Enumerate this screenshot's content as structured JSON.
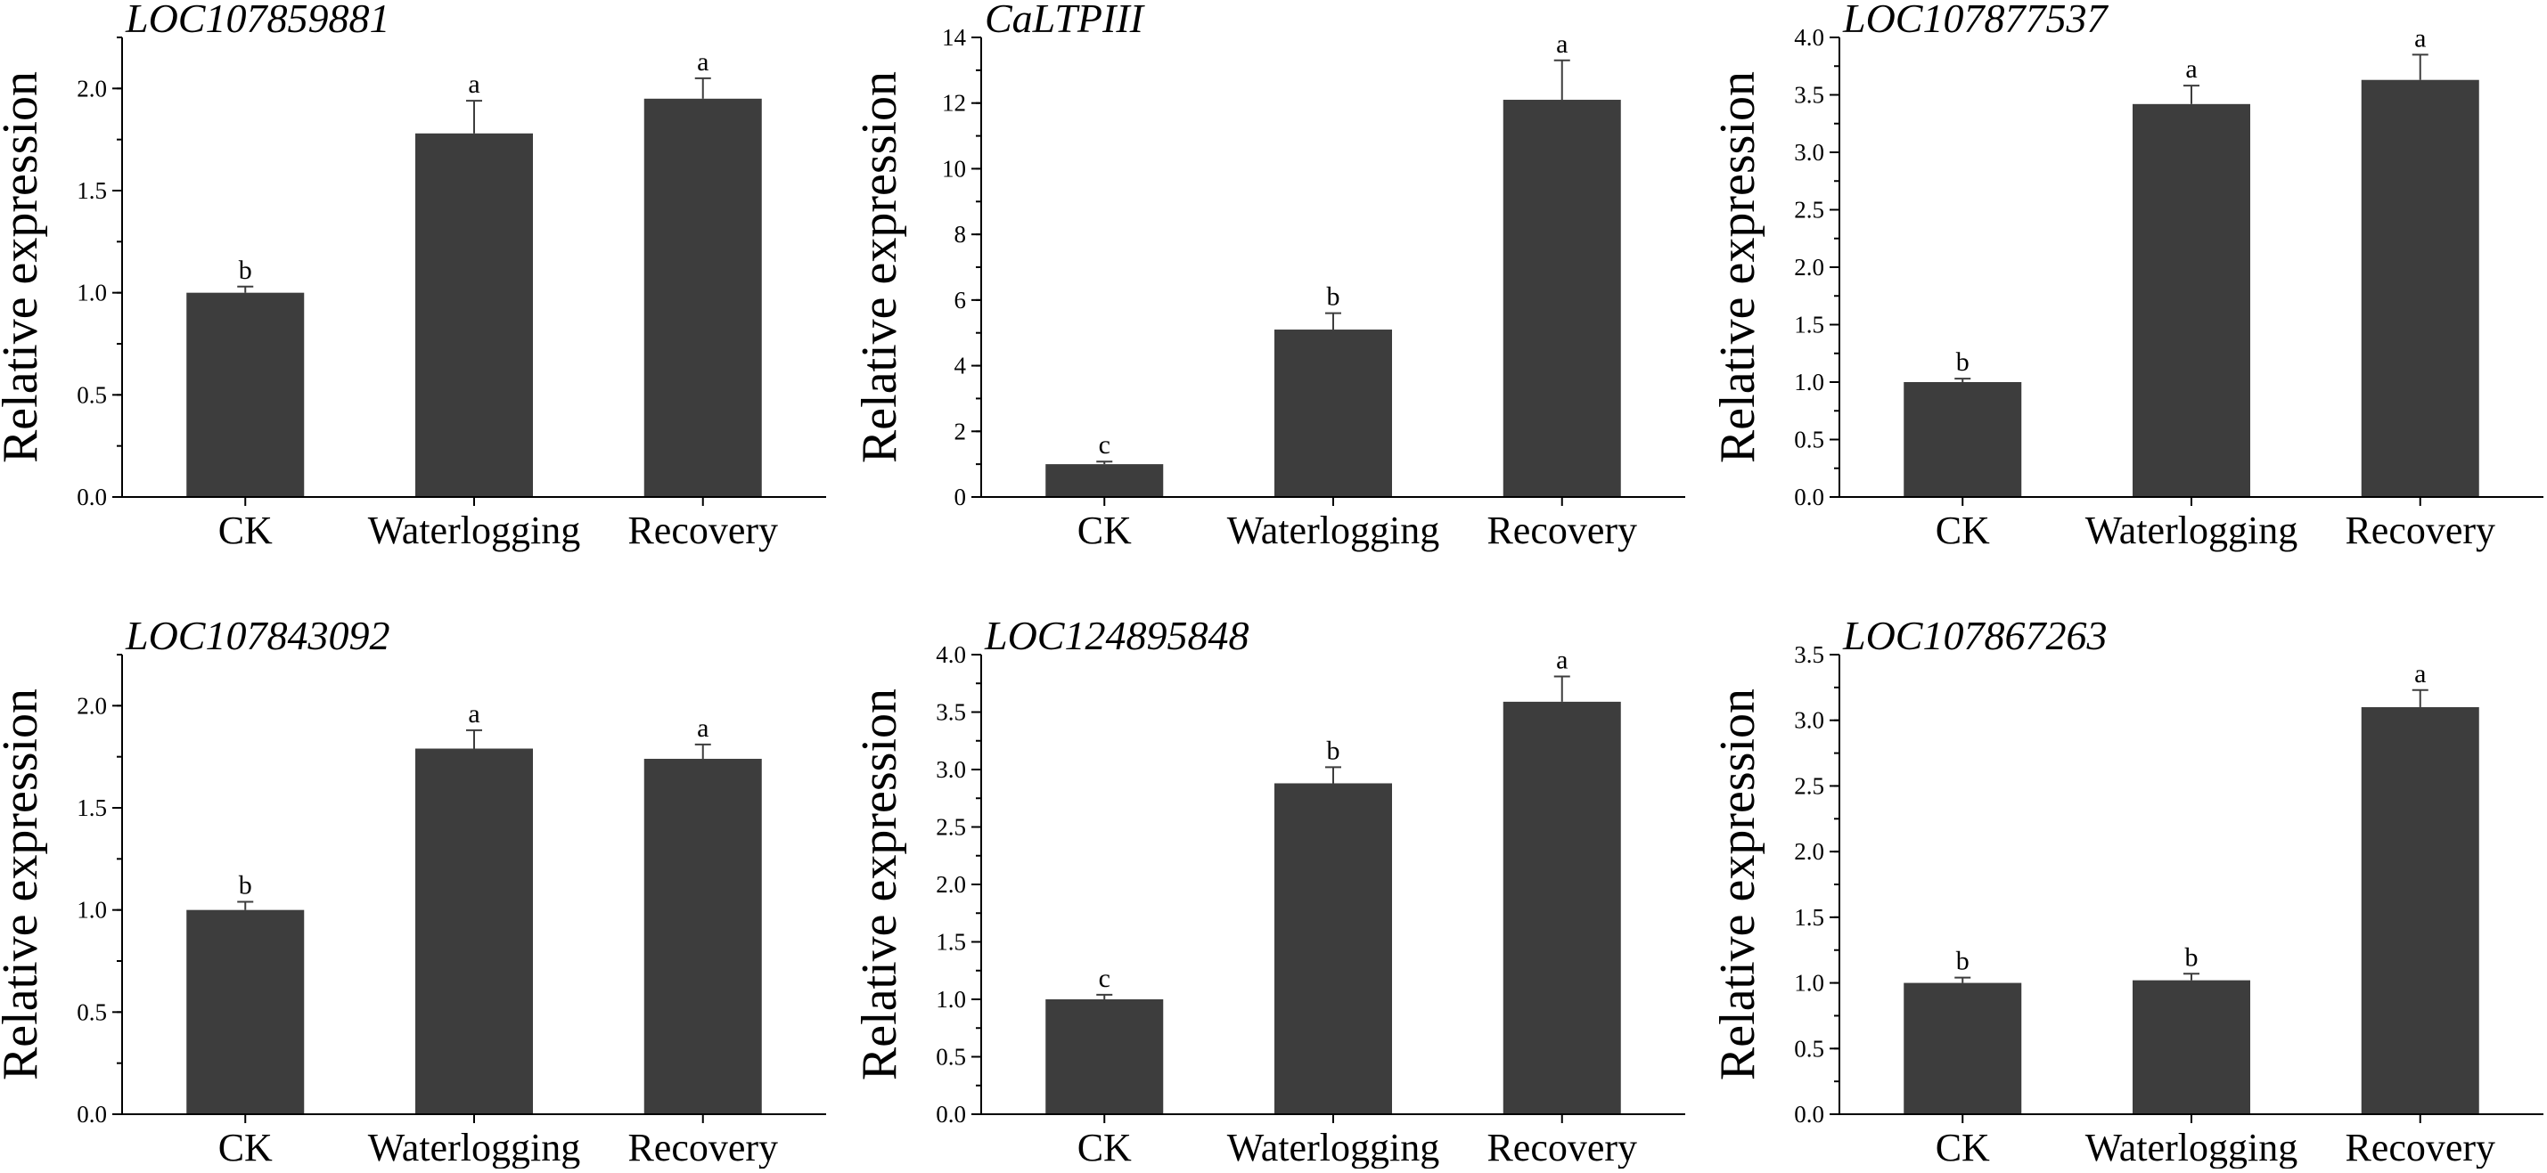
{
  "figure": {
    "background": "#ffffff",
    "bar_color": "#3d3d3d",
    "axis_color": "#000000"
  },
  "chart_data": [
    {
      "type": "bar",
      "title": "LOC107859881",
      "xlabel": "",
      "ylabel": "Relative expression",
      "categories": [
        "CK",
        "Waterlogging",
        "Recovery"
      ],
      "values": [
        1.0,
        1.78,
        1.95
      ],
      "errors": [
        0.03,
        0.16,
        0.1
      ],
      "significance": [
        "b",
        "a",
        "a"
      ],
      "ylim": [
        0,
        2.25
      ],
      "yticks": [
        0.0,
        0.5,
        1.0,
        1.5,
        2.0
      ],
      "ytick_labels": [
        "0.0",
        "0.5",
        "1.0",
        "1.5",
        "2.0"
      ],
      "minor_step": 0.25
    },
    {
      "type": "bar",
      "title": "CaLTPIII",
      "xlabel": "",
      "ylabel": "Relative expression",
      "categories": [
        "CK",
        "Waterlogging",
        "Recovery"
      ],
      "values": [
        1.0,
        5.1,
        12.1
      ],
      "errors": [
        0.08,
        0.5,
        1.2
      ],
      "significance": [
        "c",
        "b",
        "a"
      ],
      "ylim": [
        0,
        14
      ],
      "yticks": [
        0,
        2,
        4,
        6,
        8,
        10,
        12,
        14
      ],
      "ytick_labels": [
        "0",
        "2",
        "4",
        "6",
        "8",
        "10",
        "12",
        "14"
      ],
      "minor_step": 1
    },
    {
      "type": "bar",
      "title": "LOC107877537",
      "xlabel": "",
      "ylabel": "Relative expression",
      "categories": [
        "CK",
        "Waterlogging",
        "Recovery"
      ],
      "values": [
        1.0,
        3.42,
        3.63
      ],
      "errors": [
        0.03,
        0.16,
        0.22
      ],
      "significance": [
        "b",
        "a",
        "a"
      ],
      "ylim": [
        0,
        4.0
      ],
      "yticks": [
        0.0,
        0.5,
        1.0,
        1.5,
        2.0,
        2.5,
        3.0,
        3.5,
        4.0
      ],
      "ytick_labels": [
        "0.0",
        "0.5",
        "1.0",
        "1.5",
        "2.0",
        "2.5",
        "3.0",
        "3.5",
        "4.0"
      ],
      "minor_step": 0.25
    },
    {
      "type": "bar",
      "title": "LOC107843092",
      "xlabel": "",
      "ylabel": "Relative expression",
      "categories": [
        "CK",
        "Waterlogging",
        "Recovery"
      ],
      "values": [
        1.0,
        1.79,
        1.74
      ],
      "errors": [
        0.04,
        0.09,
        0.07
      ],
      "significance": [
        "b",
        "a",
        "a"
      ],
      "ylim": [
        0,
        2.25
      ],
      "yticks": [
        0.0,
        0.5,
        1.0,
        1.5,
        2.0
      ],
      "ytick_labels": [
        "0.0",
        "0.5",
        "1.0",
        "1.5",
        "2.0"
      ],
      "minor_step": 0.25
    },
    {
      "type": "bar",
      "title": "LOC124895848",
      "xlabel": "",
      "ylabel": "Relative expression",
      "categories": [
        "CK",
        "Waterlogging",
        "Recovery"
      ],
      "values": [
        1.0,
        2.88,
        3.59
      ],
      "errors": [
        0.04,
        0.14,
        0.22
      ],
      "significance": [
        "c",
        "b",
        "a"
      ],
      "ylim": [
        0,
        4.0
      ],
      "yticks": [
        0.0,
        0.5,
        1.0,
        1.5,
        2.0,
        2.5,
        3.0,
        3.5,
        4.0
      ],
      "ytick_labels": [
        "0.0",
        "0.5",
        "1.0",
        "1.5",
        "2.0",
        "2.5",
        "3.0",
        "3.5",
        "4.0"
      ],
      "minor_step": 0.25
    },
    {
      "type": "bar",
      "title": "LOC107867263",
      "xlabel": "",
      "ylabel": "Relative expression",
      "categories": [
        "CK",
        "Waterlogging",
        "Recovery"
      ],
      "values": [
        1.0,
        1.02,
        3.1
      ],
      "errors": [
        0.04,
        0.05,
        0.13
      ],
      "significance": [
        "b",
        "b",
        "a"
      ],
      "ylim": [
        0,
        3.5
      ],
      "yticks": [
        0.0,
        0.5,
        1.0,
        1.5,
        2.0,
        2.5,
        3.0,
        3.5
      ],
      "ytick_labels": [
        "0.0",
        "0.5",
        "1.0",
        "1.5",
        "2.0",
        "2.5",
        "3.0",
        "3.5"
      ],
      "minor_step": 0.25
    }
  ]
}
